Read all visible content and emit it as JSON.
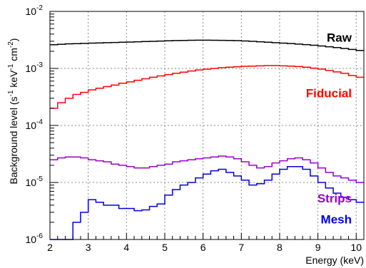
{
  "chart_data": {
    "type": "line",
    "step": true,
    "title": "",
    "xlabel": "Energy (keV)",
    "ylabel_parts": {
      "pre": "Background level (s",
      "exp1": "-1",
      "mid": " keV",
      "exp2": "-1",
      "mid2": " cm",
      "exp3": "-2",
      "post": ")"
    },
    "xlim": [
      2,
      10.2
    ],
    "ylim": [
      1e-06,
      0.01
    ],
    "yscale": "log",
    "grid": true,
    "x_ticks": [
      {
        "value": 2,
        "label": "2"
      },
      {
        "value": 3,
        "label": "3"
      },
      {
        "value": 4,
        "label": "4"
      },
      {
        "value": 5,
        "label": "5"
      },
      {
        "value": 6,
        "label": "6"
      },
      {
        "value": 7,
        "label": "7"
      },
      {
        "value": 8,
        "label": "8"
      },
      {
        "value": 9,
        "label": "9"
      },
      {
        "value": 10,
        "label": "10"
      }
    ],
    "y_ticks": [
      {
        "value": 1e-06,
        "base": "10",
        "exp": "-6"
      },
      {
        "value": 1e-05,
        "base": "10",
        "exp": "-5"
      },
      {
        "value": 0.0001,
        "base": "10",
        "exp": "-4"
      },
      {
        "value": 0.001,
        "base": "10",
        "exp": "-3"
      },
      {
        "value": 0.01,
        "base": "10",
        "exp": "-2"
      }
    ],
    "bin_edges": [
      2.0,
      2.2,
      2.4,
      2.6,
      2.8,
      3.0,
      3.2,
      3.4,
      3.6,
      3.8,
      4.0,
      4.2,
      4.4,
      4.6,
      4.8,
      5.0,
      5.2,
      5.4,
      5.6,
      5.8,
      6.0,
      6.2,
      6.4,
      6.6,
      6.8,
      7.0,
      7.2,
      7.4,
      7.6,
      7.8,
      8.0,
      8.2,
      8.4,
      8.6,
      8.8,
      9.0,
      9.2,
      9.4,
      9.6,
      9.8,
      10.0,
      10.2
    ],
    "series": [
      {
        "name": "Raw",
        "color": "#000000",
        "values": [
          0.0026,
          0.00265,
          0.0027,
          0.00272,
          0.00275,
          0.00278,
          0.0028,
          0.00283,
          0.00285,
          0.00288,
          0.0029,
          0.00293,
          0.00296,
          0.00299,
          0.00302,
          0.00305,
          0.00308,
          0.0031,
          0.00312,
          0.00313,
          0.00313,
          0.00312,
          0.00311,
          0.0031,
          0.00307,
          0.00303,
          0.00298,
          0.00293,
          0.00288,
          0.00283,
          0.00278,
          0.00273,
          0.00267,
          0.00261,
          0.00255,
          0.00248,
          0.0024,
          0.00232,
          0.00224,
          0.00215,
          0.00207
        ]
      },
      {
        "name": "Fiducial",
        "color": "#ff0000",
        "values": [
          0.0002,
          0.00025,
          0.0003,
          0.00035,
          0.00038,
          0.00042,
          0.00045,
          0.00048,
          0.00051,
          0.00055,
          0.00058,
          0.00062,
          0.00066,
          0.0007,
          0.00074,
          0.00078,
          0.00082,
          0.00086,
          0.0009,
          0.00094,
          0.00097,
          0.001,
          0.00103,
          0.00105,
          0.00107,
          0.00109,
          0.0011,
          0.00111,
          0.00112,
          0.00112,
          0.00111,
          0.0011,
          0.00108,
          0.00105,
          0.00101,
          0.00097,
          0.00092,
          0.00087,
          0.00082,
          0.00075,
          0.0007
        ]
      },
      {
        "name": "Strips",
        "color": "#9900cc",
        "values": [
          2.5e-05,
          2.7e-05,
          2.8e-05,
          2.8e-05,
          2.7e-05,
          2.5e-05,
          2.4e-05,
          2.3e-05,
          2.1e-05,
          2e-05,
          1.9e-05,
          1.8e-05,
          1.8e-05,
          1.9e-05,
          2e-05,
          2.1e-05,
          2.3e-05,
          2.4e-05,
          2.5e-05,
          2.6e-05,
          2.7e-05,
          2.8e-05,
          2.9e-05,
          2.8e-05,
          2.6e-05,
          2.3e-05,
          2e-05,
          1.8e-05,
          1.9e-05,
          2.2e-05,
          2.4e-05,
          2.6e-05,
          2.7e-05,
          2.5e-05,
          2.2e-05,
          1.8e-05,
          1.5e-05,
          1.3e-05,
          1.2e-05,
          1.1e-05,
          1e-05
        ]
      },
      {
        "name": "Mesh",
        "color": "#0000dd",
        "values": [
          1e-06,
          1e-06,
          1e-06,
          2e-06,
          3e-06,
          5e-06,
          4.5e-06,
          4e-06,
          4e-06,
          3.5e-06,
          3.5e-06,
          3.2e-06,
          3.3e-06,
          3.8e-06,
          4.2e-06,
          6e-06,
          7.5e-06,
          9e-06,
          1e-05,
          1.2e-05,
          1.4e-05,
          1.6e-05,
          1.7e-05,
          1.5e-05,
          1.3e-05,
          1.1e-05,
          9e-06,
          9.5e-06,
          1.1e-05,
          1.4e-05,
          1.7e-05,
          1.9e-05,
          1.9e-05,
          1.7e-05,
          1.3e-05,
          1e-05,
          8e-06,
          6.5e-06,
          5.5e-06,
          5e-06,
          4.5e-06
        ]
      }
    ]
  }
}
